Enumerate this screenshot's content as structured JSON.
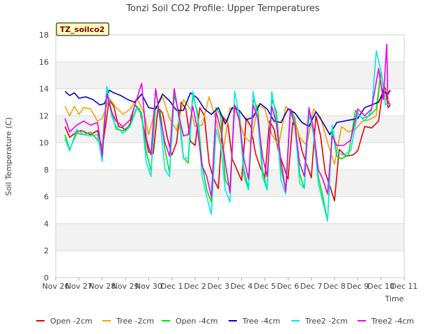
{
  "chart_data": {
    "type": "line",
    "title": "Tonzi Soil CO2 Profile: Upper Temperatures",
    "badge": "TZ_soilco2",
    "xlabel": "Time",
    "ylabel": "Soil Temperature (C)",
    "xlim": [
      0,
      15
    ],
    "ylim": [
      0,
      18
    ],
    "yticks": [
      0,
      2,
      4,
      6,
      8,
      10,
      12,
      14,
      16,
      18
    ],
    "x_tick_labels": [
      "Nov 26",
      "Nov 27",
      "Nov 28",
      "Nov 29",
      "Nov 30",
      "Dec 1",
      "Dec 2",
      "Dec 3",
      "Dec 4",
      "Dec 5",
      "Dec 6",
      "Dec 7",
      "Dec 8",
      "Dec 9",
      "Dec 10",
      "Dec 11"
    ],
    "x_unit_note": "x = days since Nov 26",
    "series": [
      {
        "name": "Open -2cm",
        "color": "#e00000",
        "x": [
          0.4,
          0.6,
          0.9,
          1.1,
          1.5,
          1.8,
          2.0,
          2.3,
          2.5,
          2.7,
          2.9,
          3.0,
          3.2,
          3.4,
          3.6,
          3.8,
          4.0,
          4.2,
          4.4,
          4.6,
          4.8,
          5.0,
          5.2,
          5.4,
          5.6,
          5.8,
          6.0,
          6.2,
          6.4,
          6.6,
          6.8,
          7.0,
          7.2,
          7.4,
          7.6,
          7.8,
          8.0,
          8.2,
          8.4,
          8.6,
          8.8,
          9.0,
          9.2,
          9.4,
          9.6,
          9.8,
          10.0,
          10.2,
          10.4,
          10.6,
          10.8,
          11.0,
          11.2,
          11.4,
          11.6,
          11.8,
          12.0,
          12.2,
          12.5,
          12.8,
          13.0,
          13.3,
          13.6,
          13.9,
          14.1,
          14.2,
          14.3,
          14.4
        ],
        "y": [
          11.2,
          10.4,
          10.8,
          10.9,
          10.6,
          10.9,
          9.5,
          13.2,
          12.7,
          11.2,
          11.1,
          10.9,
          11.4,
          12.8,
          12.5,
          11.0,
          9.3,
          9.2,
          12.6,
          12.2,
          10.4,
          9.1,
          10.0,
          13.0,
          12.5,
          10.1,
          9.8,
          12.6,
          12.0,
          8.5,
          7.3,
          6.6,
          11.9,
          11.5,
          8.8,
          8.0,
          7.2,
          11.8,
          11.2,
          9.2,
          8.2,
          7.4,
          11.6,
          11.0,
          9.3,
          8.3,
          7.3,
          11.5,
          11.0,
          9.4,
          8.4,
          7.4,
          12.0,
          10.5,
          7.8,
          6.8,
          5.7,
          9.5,
          9.0,
          9.1,
          9.4,
          11.2,
          11.1,
          11.6,
          14.2,
          14.0,
          12.6,
          12.8
        ]
      },
      {
        "name": "Tree -2cm",
        "color": "#f0a000",
        "x": [
          0.4,
          0.6,
          0.8,
          1.0,
          1.2,
          1.5,
          1.8,
          2.0,
          2.3,
          2.6,
          2.9,
          3.2,
          3.5,
          3.8,
          4.0,
          4.3,
          4.6,
          4.9,
          5.2,
          5.5,
          5.8,
          6.0,
          6.3,
          6.6,
          6.9,
          7.2,
          7.5,
          7.8,
          8.1,
          8.4,
          8.7,
          9.0,
          9.3,
          9.6,
          9.9,
          10.2,
          10.5,
          10.8,
          11.1,
          11.4,
          11.7,
          12.0,
          12.3,
          12.6,
          12.9,
          13.2,
          13.5,
          13.8,
          14.0,
          14.2,
          14.4
        ],
        "y": [
          12.7,
          12.0,
          12.7,
          12.1,
          12.6,
          12.5,
          11.6,
          11.8,
          13.3,
          12.6,
          12.1,
          12.5,
          13.3,
          12.2,
          10.6,
          12.5,
          13.4,
          11.8,
          10.9,
          13.2,
          12.5,
          11.2,
          11.3,
          13.4,
          11.7,
          9.3,
          12.6,
          12.2,
          10.5,
          10.0,
          12.8,
          12.5,
          10.6,
          9.8,
          12.7,
          12.2,
          10.4,
          9.8,
          12.5,
          11.9,
          10.0,
          8.4,
          11.2,
          10.8,
          11.0,
          11.6,
          11.7,
          12.0,
          15.3,
          13.2,
          13.0
        ]
      },
      {
        "name": "Open -4cm",
        "color": "#00e000",
        "x": [
          0.4,
          0.6,
          0.9,
          1.2,
          1.5,
          1.8,
          2.0,
          2.2,
          2.4,
          2.6,
          2.9,
          3.2,
          3.5,
          3.7,
          3.9,
          4.1,
          4.3,
          4.5,
          4.7,
          4.9,
          5.1,
          5.3,
          5.5,
          5.7,
          5.9,
          6.1,
          6.3,
          6.5,
          6.7,
          6.9,
          7.1,
          7.3,
          7.5,
          7.7,
          7.9,
          8.1,
          8.3,
          8.5,
          8.7,
          8.9,
          9.1,
          9.3,
          9.5,
          9.7,
          9.9,
          10.1,
          10.3,
          10.5,
          10.7,
          10.9,
          11.1,
          11.3,
          11.5,
          11.7,
          11.9,
          12.1,
          12.3,
          12.6,
          12.9,
          13.2,
          13.5,
          13.8,
          14.0,
          14.2,
          14.4
        ],
        "y": [
          10.6,
          9.5,
          10.7,
          10.6,
          10.8,
          10.2,
          9.6,
          14.0,
          12.4,
          11.0,
          10.9,
          11.3,
          12.7,
          12.2,
          9.3,
          7.9,
          12.7,
          12.3,
          9.5,
          7.8,
          13.5,
          12.3,
          8.9,
          8.5,
          13.5,
          12.3,
          8.4,
          6.5,
          5.6,
          12.6,
          12.0,
          7.2,
          6.7,
          12.8,
          12.3,
          8.0,
          6.6,
          13.2,
          12.5,
          8.0,
          6.5,
          13.2,
          12.3,
          8.0,
          6.6,
          12.5,
          11.8,
          7.7,
          6.6,
          12.2,
          11.0,
          7.5,
          6.0,
          4.2,
          11.0,
          9.0,
          8.8,
          9.1,
          12.4,
          11.8,
          12.0,
          12.5,
          15.3,
          12.8,
          12.9
        ]
      },
      {
        "name": "Tree -4cm",
        "color": "#0000c0",
        "x": [
          0.4,
          0.6,
          0.8,
          1.0,
          1.3,
          1.6,
          1.9,
          2.1,
          2.3,
          2.5,
          2.8,
          3.1,
          3.4,
          3.7,
          4.0,
          4.3,
          4.6,
          4.9,
          5.2,
          5.5,
          5.8,
          6.1,
          6.4,
          6.7,
          7.0,
          7.3,
          7.6,
          7.9,
          8.2,
          8.5,
          8.8,
          9.1,
          9.4,
          9.7,
          10.0,
          10.3,
          10.6,
          10.9,
          11.2,
          11.5,
          11.8,
          12.1,
          12.4,
          12.7,
          13.0,
          13.3,
          13.6,
          13.9,
          14.1,
          14.3,
          14.4
        ],
        "y": [
          13.8,
          13.5,
          13.7,
          13.3,
          13.4,
          13.2,
          12.8,
          12.9,
          13.9,
          13.7,
          13.5,
          13.2,
          13.0,
          13.6,
          12.6,
          12.5,
          13.6,
          13.1,
          12.4,
          12.4,
          13.7,
          13.3,
          12.5,
          12.1,
          12.6,
          11.4,
          12.6,
          12.4,
          11.7,
          11.9,
          12.9,
          12.5,
          11.6,
          11.5,
          12.5,
          12.2,
          11.5,
          11.2,
          12.3,
          11.5,
          10.6,
          11.5,
          11.6,
          11.7,
          11.8,
          12.6,
          12.8,
          13.0,
          13.8,
          13.6,
          13.9
        ]
      },
      {
        "name": "Tree2 -2cm",
        "color": "#00e8e8",
        "x": [
          0.4,
          0.6,
          0.9,
          1.2,
          1.5,
          1.8,
          2.0,
          2.2,
          2.4,
          2.6,
          2.9,
          3.2,
          3.5,
          3.7,
          3.9,
          4.1,
          4.3,
          4.5,
          4.7,
          4.9,
          5.1,
          5.3,
          5.5,
          5.7,
          5.9,
          6.1,
          6.3,
          6.5,
          6.7,
          6.9,
          7.1,
          7.3,
          7.5,
          7.7,
          7.9,
          8.1,
          8.3,
          8.5,
          8.7,
          8.9,
          9.1,
          9.3,
          9.5,
          9.7,
          9.9,
          10.1,
          10.3,
          10.5,
          10.7,
          10.9,
          11.1,
          11.3,
          11.5,
          11.7,
          11.9,
          12.1,
          12.4,
          12.7,
          13.0,
          13.3,
          13.6,
          13.8,
          14.0,
          14.2,
          14.4
        ],
        "y": [
          10.3,
          9.4,
          11.0,
          10.6,
          10.5,
          10.6,
          8.6,
          14.2,
          12.0,
          11.2,
          10.7,
          11.2,
          12.6,
          12.0,
          8.5,
          7.5,
          14.0,
          11.5,
          8.0,
          7.5,
          14.0,
          11.8,
          8.8,
          8.9,
          13.8,
          12.0,
          7.5,
          6.0,
          4.7,
          11.0,
          9.8,
          6.5,
          5.6,
          13.8,
          12.0,
          7.5,
          6.5,
          13.8,
          11.7,
          7.5,
          6.5,
          13.8,
          11.6,
          7.2,
          6.2,
          12.3,
          11.3,
          7.0,
          6.6,
          12.2,
          10.6,
          7.0,
          5.6,
          4.2,
          11.3,
          9.3,
          9.1,
          9.4,
          12.2,
          11.6,
          12.4,
          16.8,
          15.3,
          12.8,
          12.9
        ]
      },
      {
        "name": "Tree2 -4cm",
        "color": "#e800e8",
        "x": [
          0.4,
          0.6,
          0.9,
          1.2,
          1.5,
          1.8,
          2.0,
          2.2,
          2.4,
          2.6,
          2.9,
          3.2,
          3.5,
          3.7,
          3.9,
          4.1,
          4.3,
          4.5,
          4.7,
          4.9,
          5.1,
          5.3,
          5.5,
          5.7,
          5.9,
          6.1,
          6.3,
          6.5,
          6.7,
          6.9,
          7.1,
          7.3,
          7.5,
          7.7,
          7.9,
          8.1,
          8.3,
          8.5,
          8.7,
          8.9,
          9.1,
          9.3,
          9.5,
          9.7,
          9.9,
          10.1,
          10.3,
          10.5,
          10.7,
          10.9,
          11.1,
          11.3,
          11.5,
          11.7,
          11.9,
          12.1,
          12.4,
          12.7,
          13.0,
          13.3,
          13.6,
          13.9,
          14.1,
          14.25,
          14.3,
          14.4
        ],
        "y": [
          11.8,
          10.8,
          11.3,
          11.6,
          11.3,
          11.5,
          9.0,
          13.6,
          12.3,
          11.6,
          11.2,
          11.7,
          13.3,
          14.4,
          10.3,
          9.1,
          14.0,
          11.8,
          10.0,
          9.0,
          14.0,
          12.0,
          10.5,
          10.6,
          12.7,
          11.0,
          8.3,
          7.5,
          6.0,
          12.3,
          11.0,
          8.5,
          6.3,
          12.8,
          11.7,
          8.8,
          7.3,
          12.8,
          11.8,
          9.0,
          7.5,
          12.7,
          11.4,
          8.6,
          6.4,
          12.5,
          11.2,
          8.5,
          7.5,
          12.6,
          11.0,
          8.0,
          7.3,
          6.2,
          10.5,
          9.8,
          9.8,
          10.2,
          12.5,
          12.0,
          12.5,
          15.5,
          13.2,
          17.3,
          13.0,
          12.8
        ]
      }
    ]
  }
}
